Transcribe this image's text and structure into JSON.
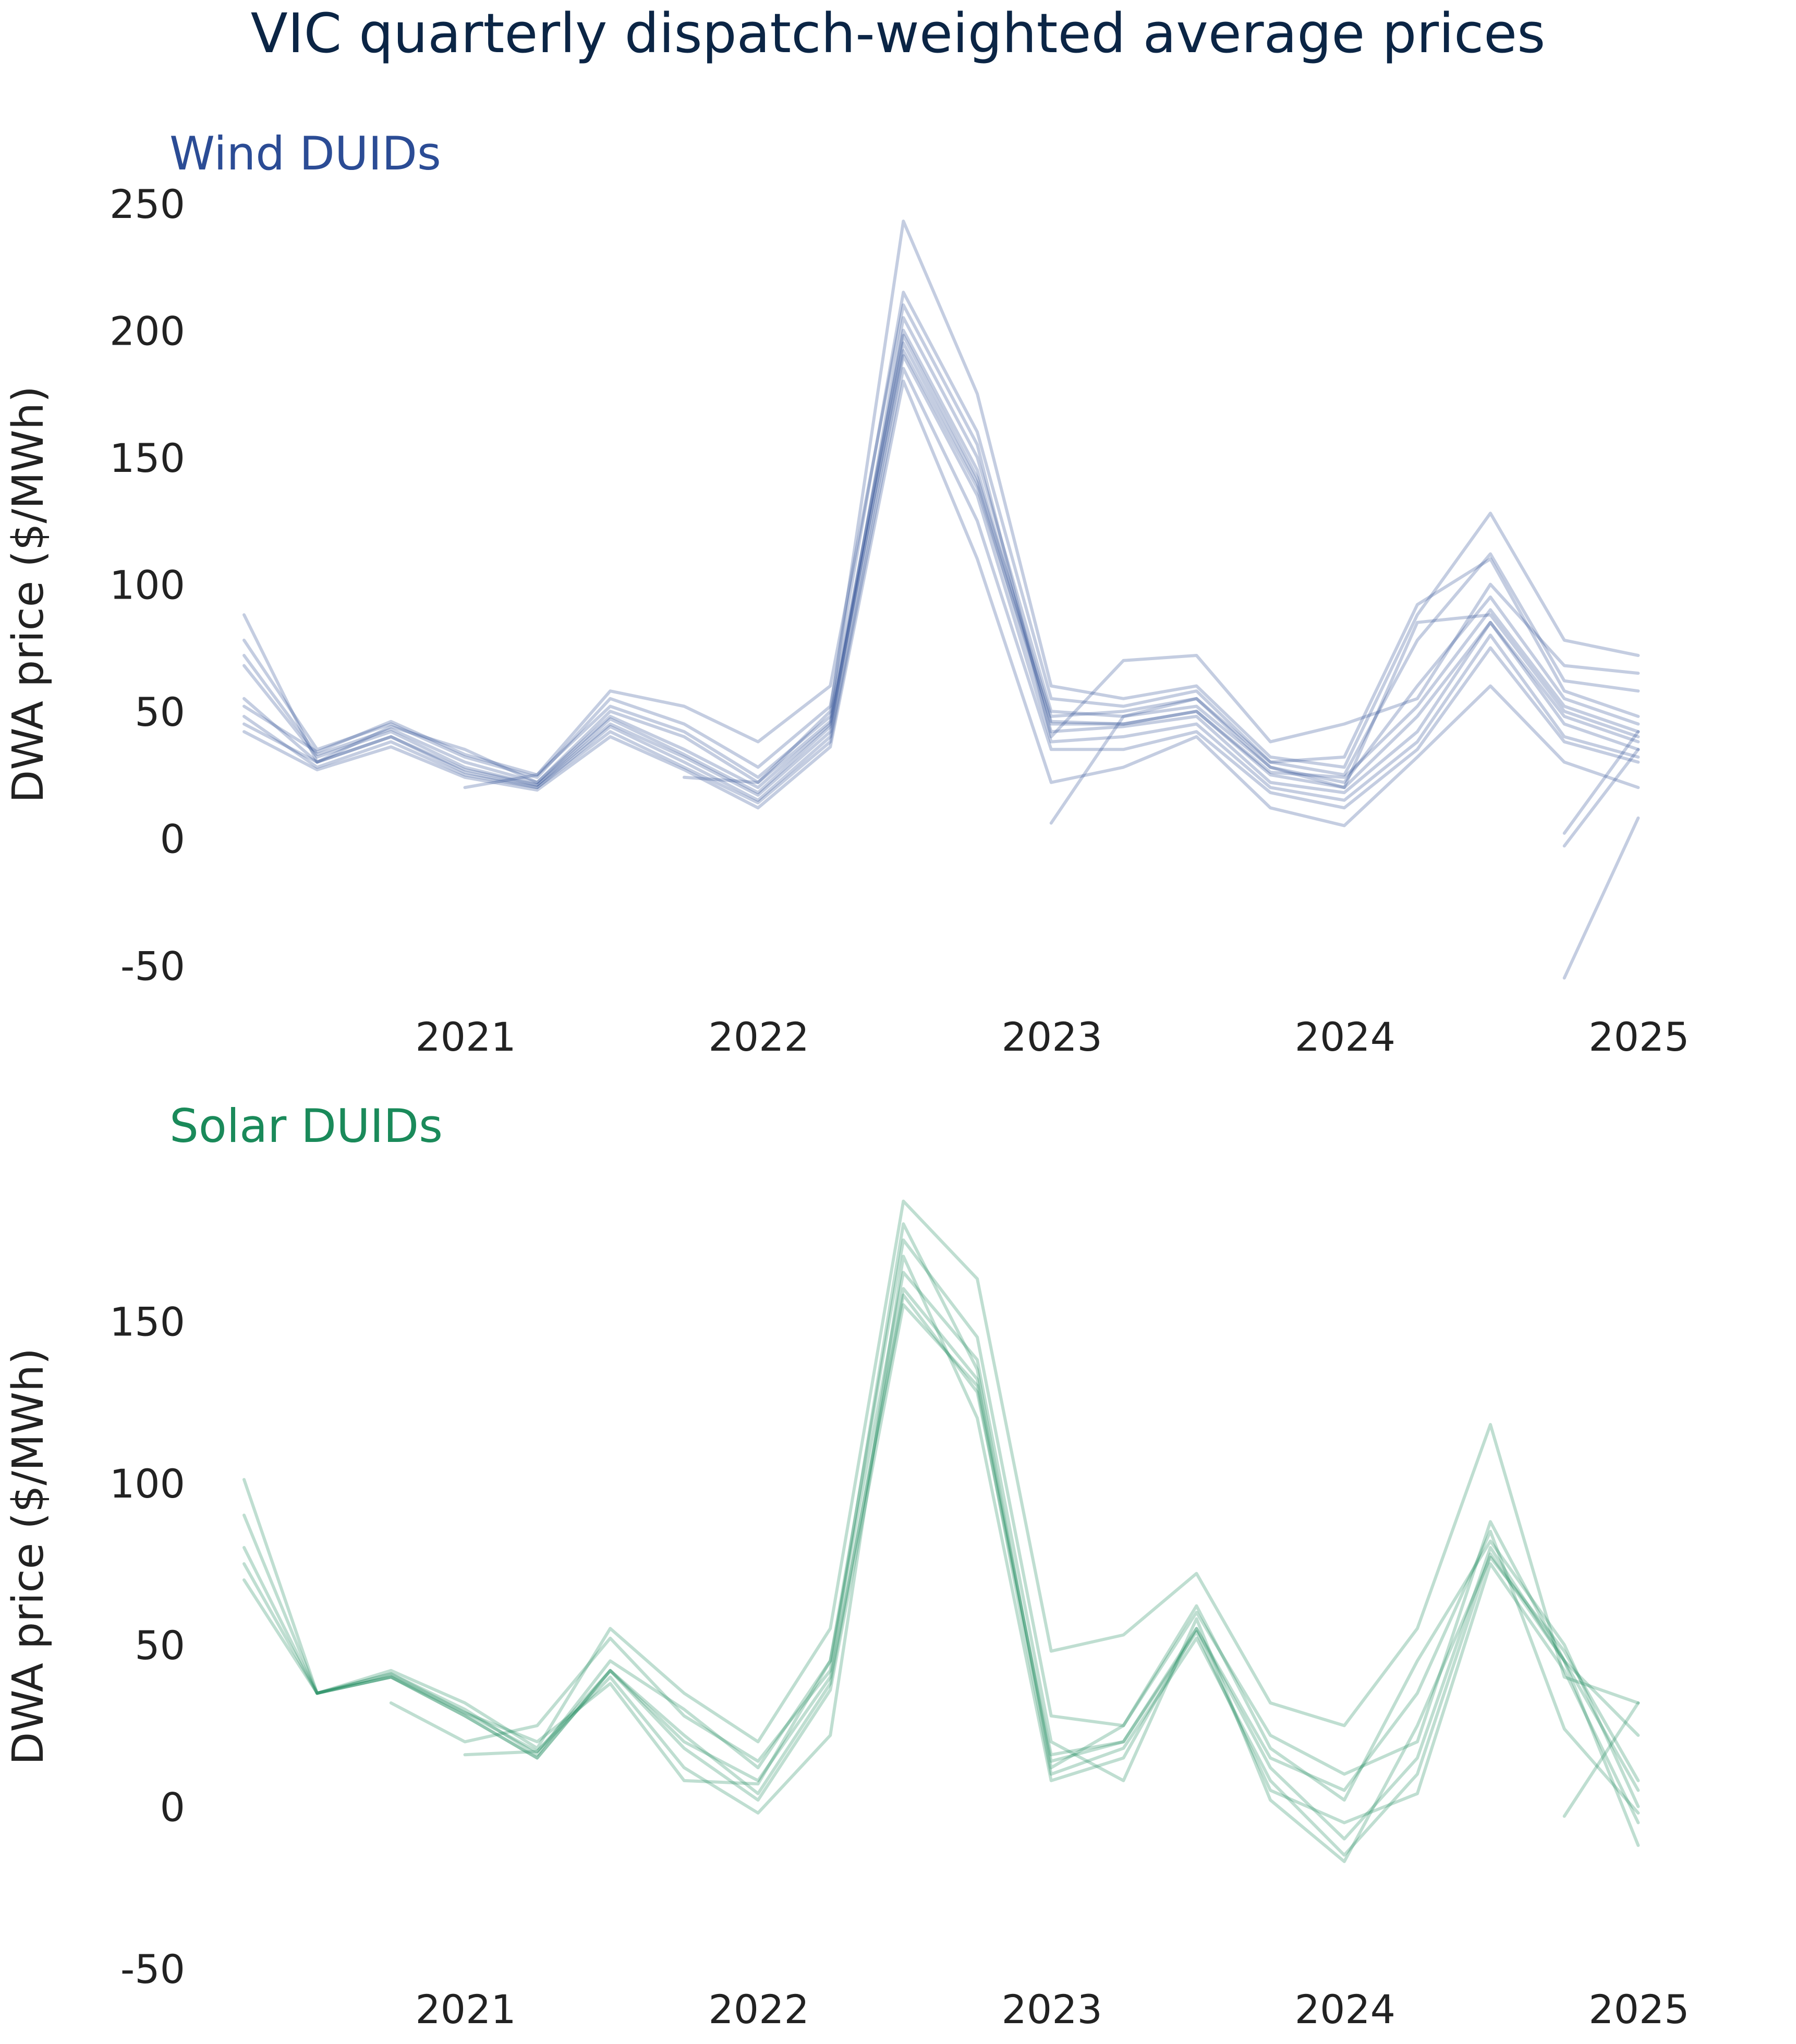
{
  "title": "VIC quarterly dispatch-weighted average prices",
  "colors": {
    "title": "#0b2545",
    "text": "#222222",
    "wind": "#2b4c95",
    "solar": "#1a8a5a"
  },
  "chart_data": [
    {
      "type": "line",
      "id": "wind",
      "title": "Wind DUIDs",
      "xlabel": "",
      "ylabel": "DWA price ($/MWh)",
      "color": "#2b4c95",
      "grid": false,
      "xlim": [
        "2020-03-31",
        "2025-03-31"
      ],
      "ylim": [
        -60,
        250
      ],
      "yticks": [
        -50,
        0,
        50,
        100,
        150,
        200,
        250
      ],
      "xticks": [
        "2021-01-01",
        "2022-01-01",
        "2023-01-01",
        "2024-01-01",
        "2025-01-01"
      ],
      "xtick_labels": [
        "2021",
        "2022",
        "2023",
        "2024",
        "2025"
      ],
      "x": [
        "2020-03-31",
        "2020-06-30",
        "2020-09-30",
        "2020-12-31",
        "2021-03-31",
        "2021-06-30",
        "2021-09-30",
        "2021-12-31",
        "2022-03-31",
        "2022-06-30",
        "2022-09-30",
        "2022-12-31",
        "2023-03-31",
        "2023-06-30",
        "2023-09-30",
        "2023-12-31",
        "2024-03-31",
        "2024-06-30",
        "2024-09-30",
        "2024-12-31"
      ],
      "series": [
        {
          "values": [
            88,
            30,
            44,
            35,
            22,
            50,
            40,
            22,
            50,
            243,
            175,
            60,
            55,
            60,
            32,
            28,
            88,
            128,
            78,
            72
          ]
        },
        {
          "values": [
            72,
            33,
            43,
            30,
            22,
            48,
            35,
            20,
            45,
            200,
            145,
            45,
            45,
            50,
            25,
            20,
            85,
            88,
            50,
            40
          ]
        },
        {
          "values": [
            68,
            32,
            42,
            28,
            21,
            47,
            33,
            18,
            44,
            195,
            140,
            42,
            44,
            48,
            22,
            18,
            42,
            85,
            45,
            35
          ]
        },
        {
          "values": [
            78,
            35,
            45,
            32,
            24,
            55,
            45,
            28,
            52,
            215,
            160,
            55,
            52,
            58,
            30,
            25,
            78,
            112,
            62,
            58
          ]
        },
        {
          "values": [
            55,
            30,
            40,
            26,
            20,
            44,
            30,
            15,
            40,
            190,
            135,
            38,
            40,
            45,
            20,
            15,
            38,
            80,
            40,
            32
          ]
        },
        {
          "values": [
            48,
            28,
            38,
            25,
            20,
            42,
            28,
            14,
            38,
            185,
            125,
            35,
            35,
            42,
            18,
            12,
            35,
            75,
            38,
            30
          ]
        },
        {
          "values": [
            45,
            30,
            40,
            27,
            21,
            45,
            32,
            17,
            42,
            205,
            150,
            50,
            48,
            52,
            28,
            22,
            60,
            95,
            55,
            45
          ]
        },
        {
          "values": [
            42,
            27,
            36,
            24,
            19,
            40,
            27,
            12,
            36,
            180,
            110,
            22,
            28,
            40,
            12,
            5,
            32,
            60,
            30,
            20
          ]
        },
        {
          "values": [
            52,
            34,
            46,
            33,
            25,
            58,
            52,
            38,
            60,
            210,
            155,
            40,
            70,
            72,
            38,
            45,
            55,
            100,
            68,
            65
          ]
        },
        {
          "values": [
            null,
            null,
            null,
            20,
            25,
            52,
            42,
            24,
            48,
            198,
            142,
            48,
            50,
            55,
            30,
            32,
            92,
            110,
            58,
            48
          ]
        },
        {
          "values": [
            null,
            null,
            null,
            null,
            null,
            null,
            24,
            22,
            46,
            192,
            138,
            46,
            45,
            50,
            26,
            24,
            52,
            90,
            52,
            42
          ]
        },
        {
          "values": [
            null,
            null,
            null,
            null,
            null,
            null,
            null,
            null,
            null,
            null,
            null,
            6,
            48,
            55,
            28,
            20,
            48,
            85,
            48,
            38
          ]
        },
        {
          "values": [
            null,
            null,
            null,
            null,
            null,
            null,
            null,
            null,
            null,
            null,
            null,
            null,
            null,
            null,
            null,
            null,
            null,
            null,
            -55,
            8
          ]
        },
        {
          "values": [
            null,
            null,
            null,
            null,
            null,
            null,
            null,
            null,
            null,
            null,
            null,
            null,
            null,
            null,
            null,
            null,
            null,
            null,
            2,
            42
          ]
        },
        {
          "values": [
            null,
            null,
            null,
            null,
            null,
            null,
            null,
            null,
            null,
            null,
            null,
            null,
            null,
            null,
            null,
            null,
            null,
            null,
            -3,
            35
          ]
        }
      ]
    },
    {
      "type": "line",
      "id": "solar",
      "title": "Solar DUIDs",
      "xlabel": "",
      "ylabel": "DWA price ($/MWh)",
      "color": "#1a8a5a",
      "grid": false,
      "xlim": [
        "2020-03-31",
        "2025-03-31"
      ],
      "ylim": [
        -50,
        190
      ],
      "yticks": [
        -50,
        0,
        50,
        100,
        150
      ],
      "xticks": [
        "2021-01-01",
        "2022-01-01",
        "2023-01-01",
        "2024-01-01",
        "2025-01-01"
      ],
      "xtick_labels": [
        "2021",
        "2022",
        "2023",
        "2024",
        "2025"
      ],
      "x": [
        "2020-03-31",
        "2020-06-30",
        "2020-09-30",
        "2020-12-31",
        "2021-03-31",
        "2021-06-30",
        "2021-09-30",
        "2021-12-31",
        "2022-03-31",
        "2022-06-30",
        "2022-09-30",
        "2022-12-31",
        "2023-03-31",
        "2023-06-30",
        "2023-09-30",
        "2023-12-31",
        "2024-03-31",
        "2024-06-30",
        "2024-09-30",
        "2024-12-31"
      ],
      "series": [
        {
          "values": [
            101,
            35,
            42,
            32,
            18,
            55,
            35,
            20,
            55,
            187,
            163,
            48,
            53,
            72,
            32,
            25,
            55,
            118,
            40,
            32
          ]
        },
        {
          "values": [
            90,
            35,
            41,
            30,
            16,
            45,
            30,
            12,
            45,
            175,
            145,
            28,
            25,
            60,
            22,
            10,
            20,
            88,
            45,
            22
          ]
        },
        {
          "values": [
            80,
            35,
            40,
            28,
            15,
            42,
            22,
            4,
            38,
            160,
            132,
            14,
            20,
            55,
            12,
            -10,
            15,
            80,
            45,
            5
          ]
        },
        {
          "values": [
            75,
            35,
            40,
            28,
            15,
            42,
            18,
            2,
            36,
            155,
            130,
            10,
            18,
            52,
            8,
            -15,
            10,
            78,
            45,
            -12
          ]
        },
        {
          "values": [
            70,
            35,
            41,
            29,
            17,
            40,
            12,
            -2,
            22,
            170,
            120,
            8,
            15,
            55,
            15,
            5,
            35,
            85,
            24,
            -2
          ]
        },
        {
          "values": [
            null,
            35,
            40,
            29,
            20,
            38,
            8,
            7,
            45,
            165,
            138,
            20,
            8,
            58,
            2,
            -17,
            25,
            77,
            48,
            8
          ]
        },
        {
          "values": [
            null,
            null,
            32,
            20,
            25,
            52,
            28,
            14,
            42,
            180,
            135,
            12,
            25,
            62,
            18,
            2,
            45,
            82,
            50,
            0
          ]
        },
        {
          "values": [
            null,
            null,
            null,
            16,
            17,
            42,
            20,
            8,
            40,
            158,
            128,
            16,
            20,
            54,
            5,
            -5,
            4,
            75,
            42,
            -5
          ]
        },
        {
          "values": [
            null,
            null,
            null,
            null,
            null,
            null,
            null,
            null,
            null,
            null,
            null,
            null,
            null,
            null,
            null,
            null,
            null,
            null,
            -3,
            32
          ]
        }
      ]
    }
  ]
}
